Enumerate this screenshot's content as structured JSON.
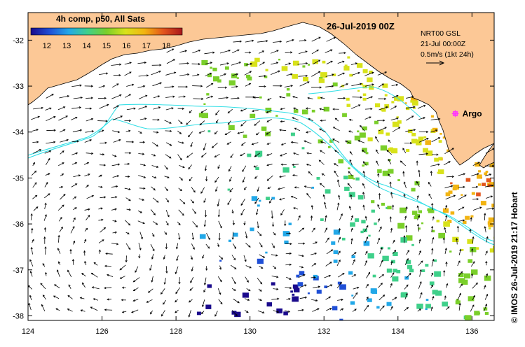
{
  "title": "26-Jul-2019 00Z",
  "colorbar": {
    "label": "4h comp, p50, All Sats",
    "ticks": [
      "12",
      "13",
      "14",
      "15",
      "16",
      "17",
      "18"
    ],
    "colors": [
      "#1a0a8c",
      "#1f4fd6",
      "#22a8e8",
      "#3fd08a",
      "#7acf2a",
      "#d8e21a",
      "#f2b412",
      "#e3551c",
      "#a8171c"
    ]
  },
  "current_legend": {
    "source": "NRT00 GSL",
    "datetime": "21-Jul 00:00Z",
    "scale": "0.5m/s (1kt 24h)"
  },
  "argo": {
    "label": "Argo",
    "color": "#ff33ff",
    "lon": 135.55,
    "lat": -33.6
  },
  "credit": "© IMOS 26-Jul-2019 21:17 Hobart",
  "axes": {
    "lon_min": 124,
    "lon_max": 136.6,
    "lat_min": -38.1,
    "lat_max": -31.4,
    "x_ticks": [
      "124",
      "126",
      "128",
      "130",
      "132",
      "134",
      "136"
    ],
    "y_ticks": [
      "-32",
      "-33",
      "-34",
      "-35",
      "-36",
      "-37",
      "-38"
    ]
  },
  "colors": {
    "land": "#fcc896",
    "ocean": "#ffffff",
    "contour": "#33dfe6",
    "arrow": "#000000"
  }
}
